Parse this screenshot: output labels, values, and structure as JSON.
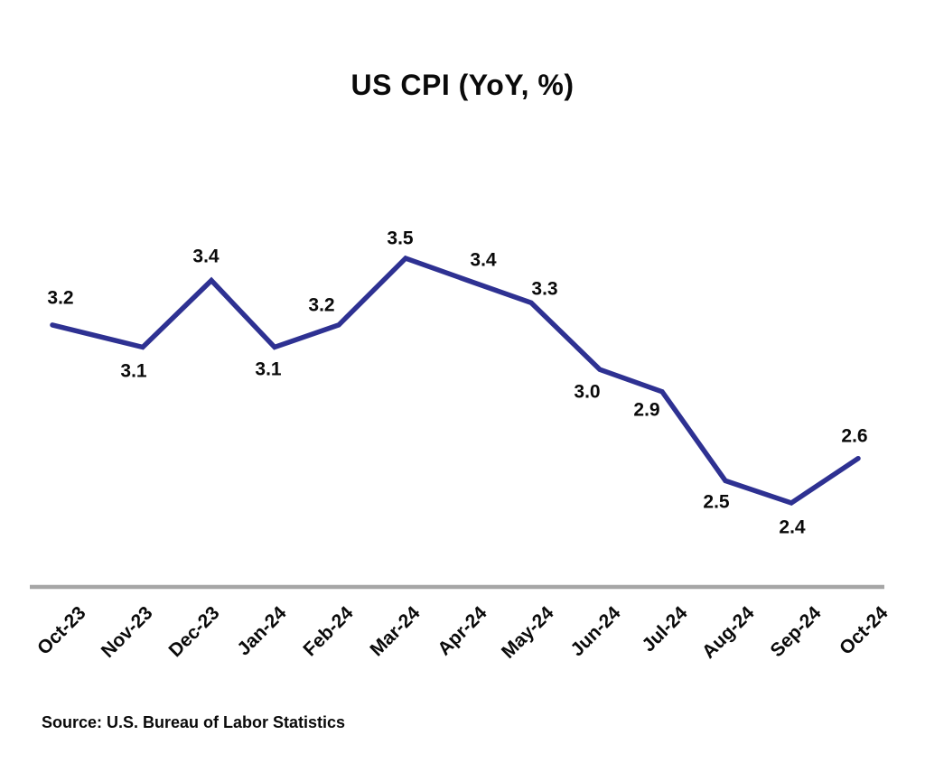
{
  "page": {
    "background_color": "#ffffff"
  },
  "chart_data": {
    "type": "line",
    "title": "US CPI (YoY, %)",
    "categories": [
      "Oct-23",
      "Nov-23",
      "Dec-23",
      "Jan-24",
      "Feb-24",
      "Mar-24",
      "Apr-24",
      "May-24",
      "Jun-24",
      "Jul-24",
      "Aug-24",
      "Sep-24",
      "Oct-24"
    ],
    "values": [
      3.2,
      3.1,
      3.4,
      3.1,
      3.2,
      3.5,
      3.4,
      3.3,
      3.0,
      2.9,
      2.5,
      2.4,
      2.6
    ],
    "series_name": "US CPI (YoY, %)",
    "xlabel": "",
    "ylabel": "",
    "ylim": [
      2.4,
      3.5
    ],
    "grid": false,
    "legend_position": "none",
    "data_labels_shown": true,
    "x_axis_label_rotation_deg": -45,
    "line_color": "#2E3192",
    "axis_line_color": "#A6A6A6",
    "text_color": "#0a0a0a",
    "source": "Source: U.S. Bureau of Labor Statistics"
  }
}
